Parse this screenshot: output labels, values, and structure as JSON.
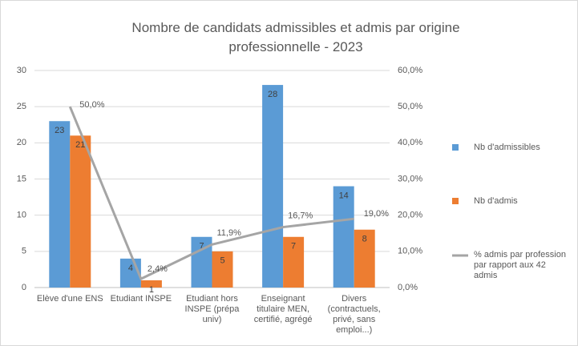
{
  "chart_data": {
    "type": "bar",
    "title": "Nombre de candidats admissibles et admis par origine professionnelle - 2023",
    "categories": [
      "Elève d'une ENS",
      "Etudiant INSPE",
      "Etudiant hors INSPE (prépa univ)",
      "Enseignant titulaire MEN, certifié, agrégé",
      "Divers (contractuels, privé, sans emploi...)"
    ],
    "series": [
      {
        "name": "Nb d'admissibles",
        "color": "#5b9bd5",
        "values": [
          23,
          4,
          7,
          28,
          14
        ]
      },
      {
        "name": "Nb d'admis",
        "color": "#ed7d31",
        "values": [
          21,
          1,
          5,
          7,
          8
        ]
      },
      {
        "name": "% admis par profession par rapport aux 42 admis",
        "color": "#a5a5a5",
        "type": "line",
        "axis": "y2",
        "values": [
          50.0,
          2.4,
          11.9,
          16.7,
          19.0
        ],
        "value_labels": [
          "50,0%",
          "2,4%",
          "11,9%",
          "16,7%",
          "19,0%"
        ]
      }
    ],
    "ylim": [
      0,
      30
    ],
    "yticks": [
      0,
      5,
      10,
      15,
      20,
      25,
      30
    ],
    "y2lim": [
      0,
      60
    ],
    "y2ticks": [
      {
        "value": 0,
        "label": "0,0%"
      },
      {
        "value": 10,
        "label": "10,0%"
      },
      {
        "value": 20,
        "label": "20,0%"
      },
      {
        "value": 30,
        "label": "30,0%"
      },
      {
        "value": 40,
        "label": "40,0%"
      },
      {
        "value": 50,
        "label": "50,0%"
      },
      {
        "value": 60,
        "label": "60,0%"
      }
    ],
    "grid": true,
    "legend": "right"
  }
}
